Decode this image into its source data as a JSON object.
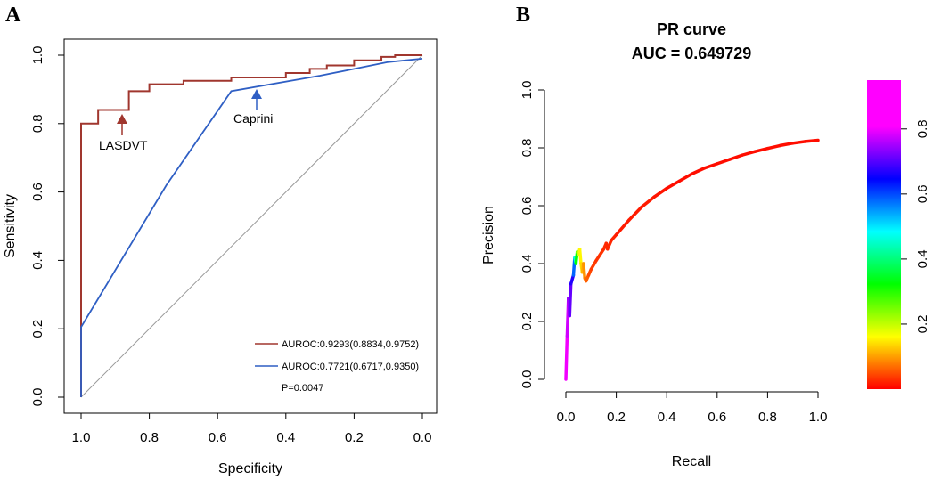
{
  "chart_data": [
    {
      "panel": "A",
      "type": "line",
      "title": "",
      "xlabel": "Specificity",
      "ylabel": "Sensitivity",
      "xlim": [
        1.0,
        0.0
      ],
      "ylim": [
        0.0,
        1.0
      ],
      "x_ticks": [
        "1.0",
        "0.8",
        "0.6",
        "0.4",
        "0.2",
        "0.0"
      ],
      "y_ticks": [
        "0.0",
        "0.2",
        "0.4",
        "0.6",
        "0.8",
        "1.0"
      ],
      "series": [
        {
          "name": "LASDVT",
          "color": "#a0362e",
          "points": [
            [
              1.0,
              0.0
            ],
            [
              1.0,
              0.8
            ],
            [
              0.95,
              0.8
            ],
            [
              0.95,
              0.84
            ],
            [
              0.86,
              0.84
            ],
            [
              0.86,
              0.895
            ],
            [
              0.8,
              0.895
            ],
            [
              0.8,
              0.915
            ],
            [
              0.7,
              0.915
            ],
            [
              0.7,
              0.925
            ],
            [
              0.56,
              0.925
            ],
            [
              0.56,
              0.935
            ],
            [
              0.4,
              0.935
            ],
            [
              0.4,
              0.948
            ],
            [
              0.33,
              0.948
            ],
            [
              0.33,
              0.96
            ],
            [
              0.28,
              0.96
            ],
            [
              0.28,
              0.97
            ],
            [
              0.2,
              0.97
            ],
            [
              0.2,
              0.985
            ],
            [
              0.12,
              0.985
            ],
            [
              0.12,
              0.995
            ],
            [
              0.08,
              0.995
            ],
            [
              0.08,
              1.0
            ],
            [
              0.0,
              1.0
            ]
          ]
        },
        {
          "name": "Caprini",
          "color": "#2f5fc4",
          "points": [
            [
              1.0,
              0.0
            ],
            [
              1.0,
              0.205
            ],
            [
              0.75,
              0.62
            ],
            [
              0.56,
              0.895
            ],
            [
              0.3,
              0.94
            ],
            [
              0.2,
              0.96
            ],
            [
              0.1,
              0.98
            ],
            [
              0.0,
              0.99
            ]
          ]
        }
      ],
      "reference_line": [
        [
          1.0,
          0.0
        ],
        [
          0.0,
          1.0
        ]
      ],
      "annotations": [
        {
          "text": "LASDVT",
          "color": "#a0362e"
        },
        {
          "text": "Caprini",
          "color": "#2f5fc4"
        }
      ],
      "legend": [
        {
          "text": "AUROC:0.9293(0.8834,0.9752)",
          "color": "#a0362e"
        },
        {
          "text": "AUROC:0.7721(0.6717,0.9350)",
          "color": "#2f5fc4"
        }
      ],
      "p_value_text": "P=0.0047",
      "legend_position": "bottom-right"
    },
    {
      "panel": "B",
      "type": "line",
      "title": "PR curve",
      "subtitle": "AUC = 0.649729",
      "xlabel": "Recall",
      "ylabel": "Precision",
      "xlim": [
        0.0,
        1.0
      ],
      "ylim": [
        0.0,
        1.0
      ],
      "x_ticks": [
        "0.0",
        "0.2",
        "0.4",
        "0.6",
        "0.8",
        "1.0"
      ],
      "y_ticks": [
        "0.0",
        "0.2",
        "0.4",
        "0.6",
        "0.8",
        "1.0"
      ],
      "series": [
        {
          "name": "PR",
          "points": [
            [
              0.0,
              0.0
            ],
            [
              0.005,
              0.15
            ],
            [
              0.01,
              0.28
            ],
            [
              0.015,
              0.22
            ],
            [
              0.02,
              0.33
            ],
            [
              0.03,
              0.36
            ],
            [
              0.035,
              0.42
            ],
            [
              0.04,
              0.4
            ],
            [
              0.045,
              0.44
            ],
            [
              0.05,
              0.43
            ],
            [
              0.055,
              0.45
            ],
            [
              0.06,
              0.4
            ],
            [
              0.065,
              0.37
            ],
            [
              0.07,
              0.4
            ],
            [
              0.075,
              0.35
            ],
            [
              0.08,
              0.34
            ],
            [
              0.09,
              0.36
            ],
            [
              0.1,
              0.38
            ],
            [
              0.12,
              0.41
            ],
            [
              0.15,
              0.45
            ],
            [
              0.16,
              0.47
            ],
            [
              0.165,
              0.45
            ],
            [
              0.18,
              0.48
            ],
            [
              0.2,
              0.5
            ],
            [
              0.25,
              0.55
            ],
            [
              0.3,
              0.595
            ],
            [
              0.35,
              0.63
            ],
            [
              0.4,
              0.66
            ],
            [
              0.45,
              0.685
            ],
            [
              0.5,
              0.71
            ],
            [
              0.55,
              0.73
            ],
            [
              0.6,
              0.745
            ],
            [
              0.65,
              0.76
            ],
            [
              0.7,
              0.775
            ],
            [
              0.75,
              0.787
            ],
            [
              0.8,
              0.798
            ],
            [
              0.85,
              0.808
            ],
            [
              0.9,
              0.816
            ],
            [
              0.95,
              0.822
            ],
            [
              1.0,
              0.826
            ]
          ],
          "threshold": [
            0.95,
            0.93,
            0.9,
            0.85,
            0.82,
            0.75,
            0.62,
            0.45,
            0.32,
            0.25,
            0.2,
            0.17,
            0.15,
            0.12,
            0.1,
            0.08,
            0.06,
            0.05,
            0.04,
            0.035,
            0.03,
            0.03,
            0.03,
            0.02,
            0.02,
            0.02,
            0.02,
            0.01,
            0.01,
            0.01,
            0.01,
            0.01,
            0.01,
            0.01,
            0.01,
            0.01,
            0.01,
            0.01,
            0.01,
            0.01
          ]
        }
      ],
      "colorbar": {
        "range": [
          0.0,
          0.95
        ],
        "ticks": [
          "0.2",
          "0.4",
          "0.6",
          "0.8"
        ],
        "colormap": "rainbow"
      }
    }
  ]
}
